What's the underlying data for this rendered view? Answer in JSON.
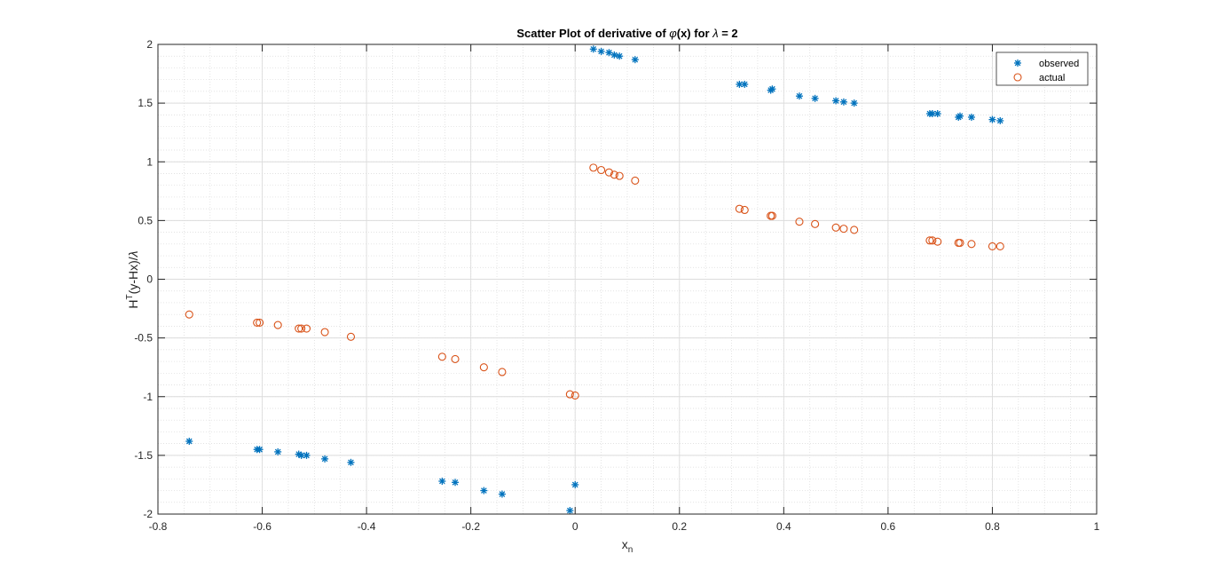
{
  "chart_data": {
    "type": "scatter",
    "title": {
      "prefix": "Scatter Plot of derivative of ",
      "phi": "φ",
      "mid": "(x) for ",
      "lambda": "λ",
      "suffix": " = 2"
    },
    "xlabel": {
      "base": "x",
      "sub": "n"
    },
    "ylabel": {
      "base": "H",
      "sup": "T",
      "rest": "(y-Hx)/",
      "lambda": "λ"
    },
    "xlim": [
      -0.8,
      1
    ],
    "ylim": [
      -2,
      2
    ],
    "xticks": [
      -0.8,
      -0.6,
      -0.4,
      -0.2,
      0,
      0.2,
      0.4,
      0.6,
      0.8,
      1
    ],
    "xtick_labels": [
      "-0.8",
      "-0.6",
      "-0.4",
      "-0.2",
      "0",
      "0.2",
      "0.4",
      "0.6",
      "0.8",
      "1"
    ],
    "yticks": [
      -2,
      -1.5,
      -1,
      -0.5,
      0,
      0.5,
      1,
      1.5,
      2
    ],
    "ytick_labels": [
      "-2",
      "-1.5",
      "-1",
      "-0.5",
      "0",
      "0.5",
      "1",
      "1.5",
      "2"
    ],
    "grid": true,
    "minor_grid": true,
    "legend_position": "top-right",
    "series": [
      {
        "name": "observed",
        "marker": "asterisk",
        "color": "#0072BD",
        "points": [
          [
            -0.74,
            -1.38
          ],
          [
            -0.61,
            -1.45
          ],
          [
            -0.605,
            -1.45
          ],
          [
            -0.57,
            -1.47
          ],
          [
            -0.53,
            -1.49
          ],
          [
            -0.525,
            -1.5
          ],
          [
            -0.515,
            -1.5
          ],
          [
            -0.48,
            -1.53
          ],
          [
            -0.43,
            -1.56
          ],
          [
            -0.255,
            -1.72
          ],
          [
            -0.23,
            -1.73
          ],
          [
            -0.175,
            -1.8
          ],
          [
            -0.14,
            -1.83
          ],
          [
            -0.01,
            -1.97
          ],
          [
            0.0,
            -1.75
          ],
          [
            0.035,
            1.96
          ],
          [
            0.05,
            1.94
          ],
          [
            0.065,
            1.93
          ],
          [
            0.075,
            1.91
          ],
          [
            0.085,
            1.9
          ],
          [
            0.115,
            1.87
          ],
          [
            0.315,
            1.66
          ],
          [
            0.325,
            1.66
          ],
          [
            0.375,
            1.61
          ],
          [
            0.378,
            1.62
          ],
          [
            0.43,
            1.56
          ],
          [
            0.46,
            1.54
          ],
          [
            0.5,
            1.52
          ],
          [
            0.515,
            1.51
          ],
          [
            0.535,
            1.5
          ],
          [
            0.68,
            1.41
          ],
          [
            0.685,
            1.41
          ],
          [
            0.695,
            1.41
          ],
          [
            0.735,
            1.38
          ],
          [
            0.738,
            1.39
          ],
          [
            0.76,
            1.38
          ],
          [
            0.8,
            1.36
          ],
          [
            0.815,
            1.35
          ]
        ]
      },
      {
        "name": "actual",
        "marker": "circle",
        "color": "#D95319",
        "points": [
          [
            -0.74,
            -0.3
          ],
          [
            -0.61,
            -0.37
          ],
          [
            -0.605,
            -0.37
          ],
          [
            -0.57,
            -0.39
          ],
          [
            -0.53,
            -0.42
          ],
          [
            -0.525,
            -0.42
          ],
          [
            -0.515,
            -0.42
          ],
          [
            -0.48,
            -0.45
          ],
          [
            -0.43,
            -0.49
          ],
          [
            -0.255,
            -0.66
          ],
          [
            -0.23,
            -0.68
          ],
          [
            -0.175,
            -0.75
          ],
          [
            -0.14,
            -0.79
          ],
          [
            -0.01,
            -0.98
          ],
          [
            0.0,
            -0.99
          ],
          [
            0.035,
            0.95
          ],
          [
            0.05,
            0.93
          ],
          [
            0.065,
            0.91
          ],
          [
            0.075,
            0.89
          ],
          [
            0.085,
            0.88
          ],
          [
            0.115,
            0.84
          ],
          [
            0.315,
            0.6
          ],
          [
            0.325,
            0.59
          ],
          [
            0.375,
            0.54
          ],
          [
            0.378,
            0.54
          ],
          [
            0.43,
            0.49
          ],
          [
            0.46,
            0.47
          ],
          [
            0.5,
            0.44
          ],
          [
            0.515,
            0.43
          ],
          [
            0.535,
            0.42
          ],
          [
            0.68,
            0.33
          ],
          [
            0.685,
            0.33
          ],
          [
            0.695,
            0.32
          ],
          [
            0.735,
            0.31
          ],
          [
            0.738,
            0.31
          ],
          [
            0.76,
            0.3
          ],
          [
            0.8,
            0.28
          ],
          [
            0.815,
            0.28
          ]
        ]
      }
    ]
  }
}
